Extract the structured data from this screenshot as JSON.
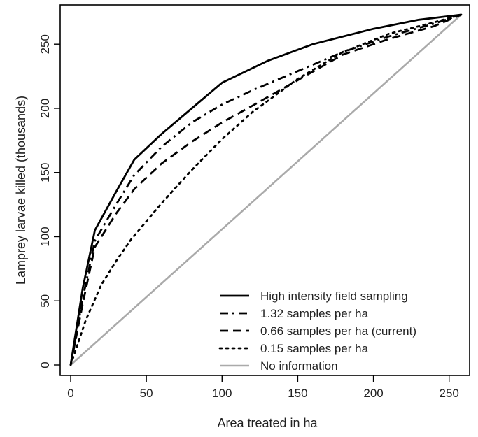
{
  "chart_data": {
    "type": "line",
    "title": "",
    "xlabel": "Area treated in ha",
    "ylabel": "Lamprey larvae killed (thousands)",
    "xlim": [
      0,
      262
    ],
    "ylim": [
      0,
      275
    ],
    "xticks": [
      0,
      50,
      100,
      150,
      200,
      250
    ],
    "xtick_labels": [
      "0",
      "50",
      "100",
      "150",
      "200",
      "250"
    ],
    "yticks": [
      0,
      50,
      100,
      150,
      200,
      250
    ],
    "ytick_labels": [
      "0",
      "50",
      "100",
      "150",
      "200",
      "250"
    ],
    "grid": false,
    "legend_position": "bottom-right",
    "series": [
      {
        "name": "High intensity field sampling",
        "style": "solid",
        "color": "#000000",
        "x": [
          0,
          8,
          16,
          30,
          42,
          60,
          80,
          100,
          130,
          160,
          200,
          230,
          258
        ],
        "y": [
          0,
          60,
          105,
          135,
          160,
          180,
          200,
          220,
          237,
          250,
          262,
          269,
          273
        ]
      },
      {
        "name": "1.32 samples per ha",
        "style": "dashdot",
        "color": "#000000",
        "x": [
          0,
          8,
          16,
          30,
          42,
          60,
          80,
          100,
          120,
          150,
          180,
          210,
          240,
          258
        ],
        "y": [
          0,
          52,
          97,
          125,
          148,
          170,
          189,
          203,
          214,
          229,
          244,
          256,
          266,
          273
        ]
      },
      {
        "name": "0.66 samples per ha (current)",
        "style": "dashed",
        "color": "#000000",
        "x": [
          0,
          8,
          16,
          30,
          42,
          60,
          80,
          100,
          120,
          150,
          180,
          210,
          240,
          258
        ],
        "y": [
          0,
          48,
          92,
          118,
          137,
          157,
          174,
          189,
          202,
          222,
          242,
          254,
          264,
          273
        ]
      },
      {
        "name": "0.15 samples per ha",
        "style": "dotted",
        "color": "#000000",
        "x": [
          0,
          10,
          20,
          30,
          40,
          60,
          80,
          100,
          120,
          150,
          180,
          210,
          240,
          258
        ],
        "y": [
          0,
          35,
          62,
          81,
          98,
          126,
          152,
          176,
          197,
          223,
          244,
          258,
          267,
          273
        ]
      },
      {
        "name": "No information",
        "style": "solid",
        "color": "#aaaaaa",
        "x": [
          0,
          258
        ],
        "y": [
          0,
          273
        ]
      }
    ]
  }
}
